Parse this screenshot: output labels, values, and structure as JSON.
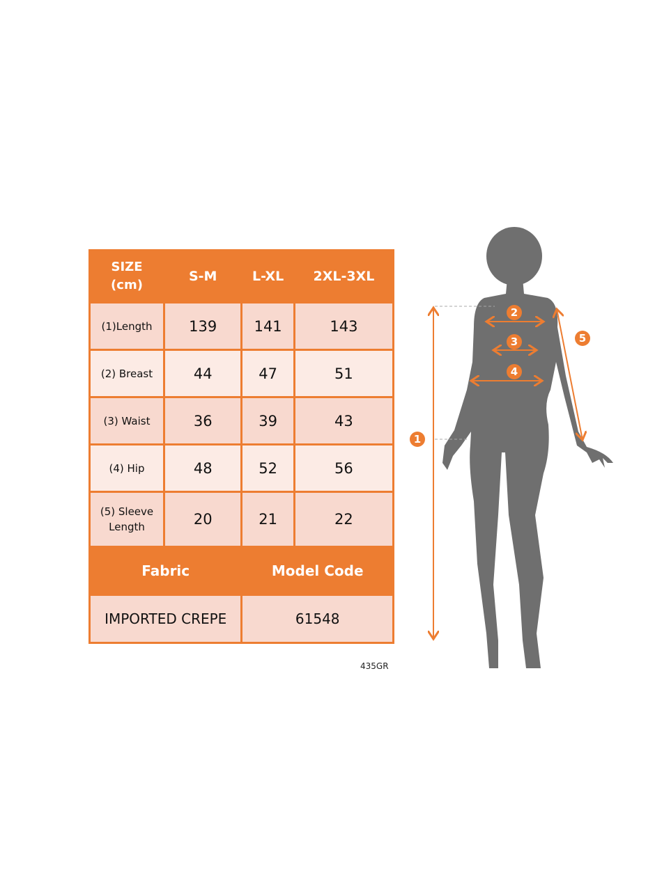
{
  "table": {
    "header": {
      "size_label_line1": "SIZE",
      "size_label_line2": "(cm)",
      "sizes": [
        "S-M",
        "L-XL",
        "2XL-3XL"
      ]
    },
    "rows": [
      {
        "label": "(1)Length",
        "values": [
          "139",
          "141",
          "143"
        ]
      },
      {
        "label": "(2) Breast",
        "values": [
          "44",
          "47",
          "51"
        ]
      },
      {
        "label": "(3) Waist",
        "values": [
          "36",
          "39",
          "43"
        ]
      },
      {
        "label": "(4) Hip",
        "values": [
          "48",
          "52",
          "56"
        ]
      },
      {
        "label_line1": "(5) Sleeve",
        "label_line2": "Length",
        "values": [
          "20",
          "21",
          "22"
        ]
      }
    ],
    "fabric_header": "Fabric",
    "model_code_header": "Model Code",
    "fabric_value": "IMPORTED CREPE",
    "model_code_value": "61548"
  },
  "product_code": "435GR",
  "figure": {
    "markers": [
      "1",
      "2",
      "3",
      "4",
      "5"
    ]
  },
  "colors": {
    "accent": "#ed7d31",
    "row_dark": "#f8d9cf",
    "row_light": "#fcebe5",
    "silhouette": "#6f6f6f"
  }
}
